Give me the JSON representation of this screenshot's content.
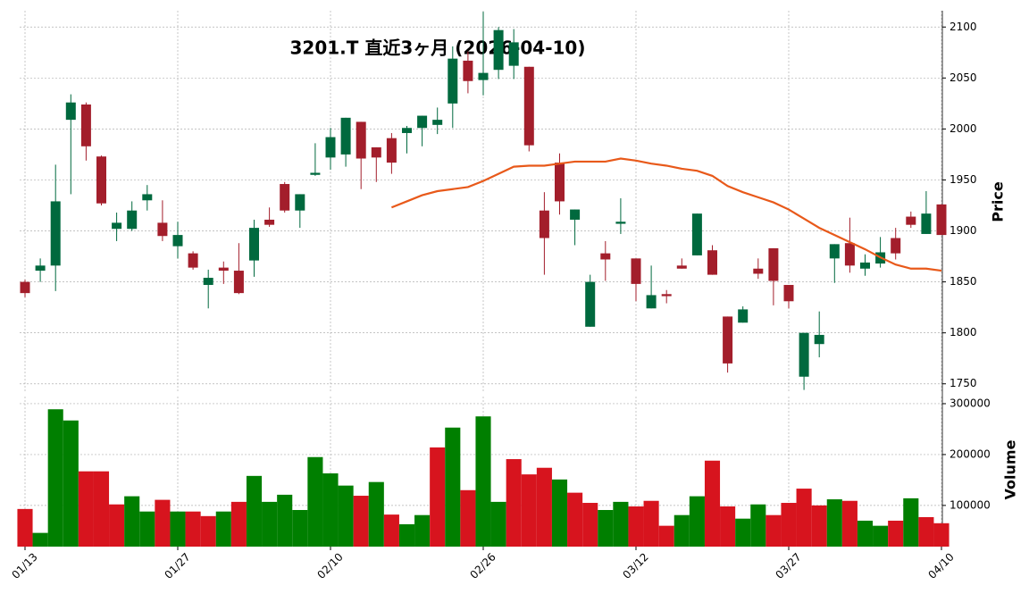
{
  "chart_data": {
    "type": "candlestick",
    "title": "3201.T 直近3ヶ月 (2026-04-10)",
    "categories": [
      "01/13",
      null,
      null,
      null,
      null,
      null,
      null,
      null,
      null,
      null,
      "01/27",
      null,
      null,
      null,
      null,
      null,
      null,
      null,
      null,
      null,
      "02/10",
      null,
      null,
      null,
      null,
      null,
      null,
      null,
      null,
      null,
      "02/26",
      null,
      null,
      null,
      null,
      null,
      null,
      null,
      null,
      null,
      "03/12",
      null,
      null,
      null,
      null,
      null,
      null,
      null,
      null,
      null,
      "03/27",
      null,
      null,
      null,
      null,
      null,
      null,
      null,
      null,
      null,
      "04/10"
    ],
    "ohlc": {
      "open": [
        1850,
        1861,
        1866,
        2009,
        2024,
        1973,
        1902,
        1902,
        1930,
        1908,
        1885,
        1878,
        1847,
        1864,
        1861,
        1871,
        1911,
        1946,
        1920,
        1955,
        1972,
        1975,
        2007,
        1982,
        1991,
        1996,
        2001,
        2004,
        2025,
        2067,
        2048,
        2058,
        2062,
        2061,
        1920,
        1967,
        1911,
        1806,
        1878,
        1907,
        1873,
        1824,
        1838,
        1866,
        1876,
        1881,
        1816,
        1810,
        1863,
        1883,
        1847,
        1757,
        1789,
        1873,
        1888,
        1863,
        1868,
        1893,
        1914,
        1897,
        1926
      ],
      "high": [
        1852,
        1873,
        1965,
        2034,
        2026,
        1974,
        1918,
        1929,
        1945,
        1930,
        1909,
        1880,
        1862,
        1870,
        1888,
        1911,
        1923,
        1948,
        1936,
        1986,
        2001,
        2011,
        2007,
        1982,
        1996,
        2003,
        2013,
        2021,
        2081,
        2076,
        2115,
        2100,
        2098,
        2061,
        1938,
        1976,
        1921,
        1857,
        1890,
        1932,
        1873,
        1866,
        1842,
        1873,
        1917,
        1886,
        1816,
        1826,
        1873,
        1883,
        1847,
        1800,
        1821,
        1887,
        1913,
        1877,
        1894,
        1903,
        1919,
        1939,
        1926
      ],
      "low": [
        1835,
        1850,
        1841,
        1936,
        1969,
        1925,
        1890,
        1900,
        1920,
        1890,
        1873,
        1862,
        1824,
        1848,
        1838,
        1855,
        1904,
        1918,
        1903,
        1954,
        1960,
        1963,
        1941,
        1948,
        1956,
        1976,
        1983,
        1995,
        2001,
        2035,
        2033,
        2049,
        2049,
        1978,
        1857,
        1916,
        1886,
        1806,
        1851,
        1897,
        1831,
        1824,
        1829,
        1863,
        1876,
        1857,
        1761,
        1810,
        1853,
        1827,
        1824,
        1744,
        1776,
        1849,
        1859,
        1856,
        1864,
        1872,
        1903,
        1897,
        1896
      ],
      "close": [
        1839,
        1866,
        1929,
        2026,
        1983,
        1927,
        1908,
        1920,
        1936,
        1895,
        1896,
        1864,
        1854,
        1861,
        1839,
        1903,
        1906,
        1920,
        1936,
        1957,
        1992,
        2011,
        1971,
        1972,
        1967,
        2001,
        2013,
        2009,
        2069,
        2047,
        2055,
        2097,
        2085,
        1984,
        1893,
        1929,
        1921,
        1850,
        1872,
        1909,
        1848,
        1837,
        1836,
        1863,
        1917,
        1857,
        1770,
        1823,
        1858,
        1851,
        1831,
        1800,
        1798,
        1887,
        1866,
        1869,
        1879,
        1878,
        1906,
        1917,
        1896
      ],
      "up_color": "#00693e",
      "down_color": "#a31e2b"
    },
    "ma": {
      "color": "#e8591a",
      "values": [
        null,
        null,
        null,
        null,
        null,
        null,
        null,
        null,
        null,
        null,
        null,
        null,
        null,
        null,
        null,
        null,
        null,
        null,
        null,
        null,
        null,
        null,
        null,
        null,
        1923,
        1929,
        1935,
        1939,
        1941,
        1943,
        1949,
        1956,
        1963,
        1964,
        1964,
        1966,
        1968,
        1968,
        1968,
        1971,
        1969,
        1966,
        1964,
        1961,
        1959,
        1954,
        1944,
        1938,
        1933,
        1928,
        1921,
        1912,
        1903,
        1896,
        1889,
        1882,
        1874,
        1867,
        1863,
        1863,
        1861
      ]
    },
    "ylabel": "Price",
    "ylim": [
      1741,
      2116
    ],
    "yticks": [
      1750,
      1800,
      1850,
      1900,
      1950,
      2000,
      2050,
      2100
    ],
    "volume": {
      "ylabel": "Volume",
      "ylim": [
        19000,
        321000
      ],
      "yticks": [
        100000,
        200000,
        300000
      ],
      "values": [
        93000,
        46000,
        289000,
        267000,
        167000,
        167000,
        102000,
        118000,
        88000,
        111000,
        88000,
        88000,
        79000,
        88000,
        107000,
        158000,
        107000,
        121000,
        91000,
        195000,
        163000,
        139000,
        119000,
        146000,
        82000,
        63000,
        81000,
        214000,
        253000,
        130000,
        275000,
        107000,
        191000,
        161000,
        174000,
        151000,
        125000,
        105000,
        91000,
        107000,
        98000,
        109000,
        60000,
        81000,
        118000,
        188000,
        98000,
        74000,
        102000,
        81000,
        105000,
        133000,
        100000,
        112000,
        109000,
        70000,
        60000,
        70000,
        114000,
        77000,
        65000
      ],
      "colors": [
        "#d7141e",
        "#007f00",
        "#007f00",
        "#007f00",
        "#d7141e",
        "#d7141e",
        "#d7141e",
        "#007f00",
        "#007f00",
        "#d7141e",
        "#007f00",
        "#d7141e",
        "#d7141e",
        "#007f00",
        "#d7141e",
        "#007f00",
        "#007f00",
        "#007f00",
        "#007f00",
        "#007f00",
        "#007f00",
        "#007f00",
        "#d7141e",
        "#007f00",
        "#d7141e",
        "#007f00",
        "#007f00",
        "#d7141e",
        "#007f00",
        "#d7141e",
        "#007f00",
        "#007f00",
        "#d7141e",
        "#d7141e",
        "#d7141e",
        "#007f00",
        "#d7141e",
        "#d7141e",
        "#007f00",
        "#007f00",
        "#d7141e",
        "#d7141e",
        "#d7141e",
        "#007f00",
        "#007f00",
        "#d7141e",
        "#d7141e",
        "#007f00",
        "#007f00",
        "#d7141e",
        "#d7141e",
        "#d7141e",
        "#d7141e",
        "#007f00",
        "#d7141e",
        "#007f00",
        "#007f00",
        "#d7141e",
        "#007f00",
        "#d7141e",
        "#d7141e"
      ]
    },
    "grid": true
  }
}
